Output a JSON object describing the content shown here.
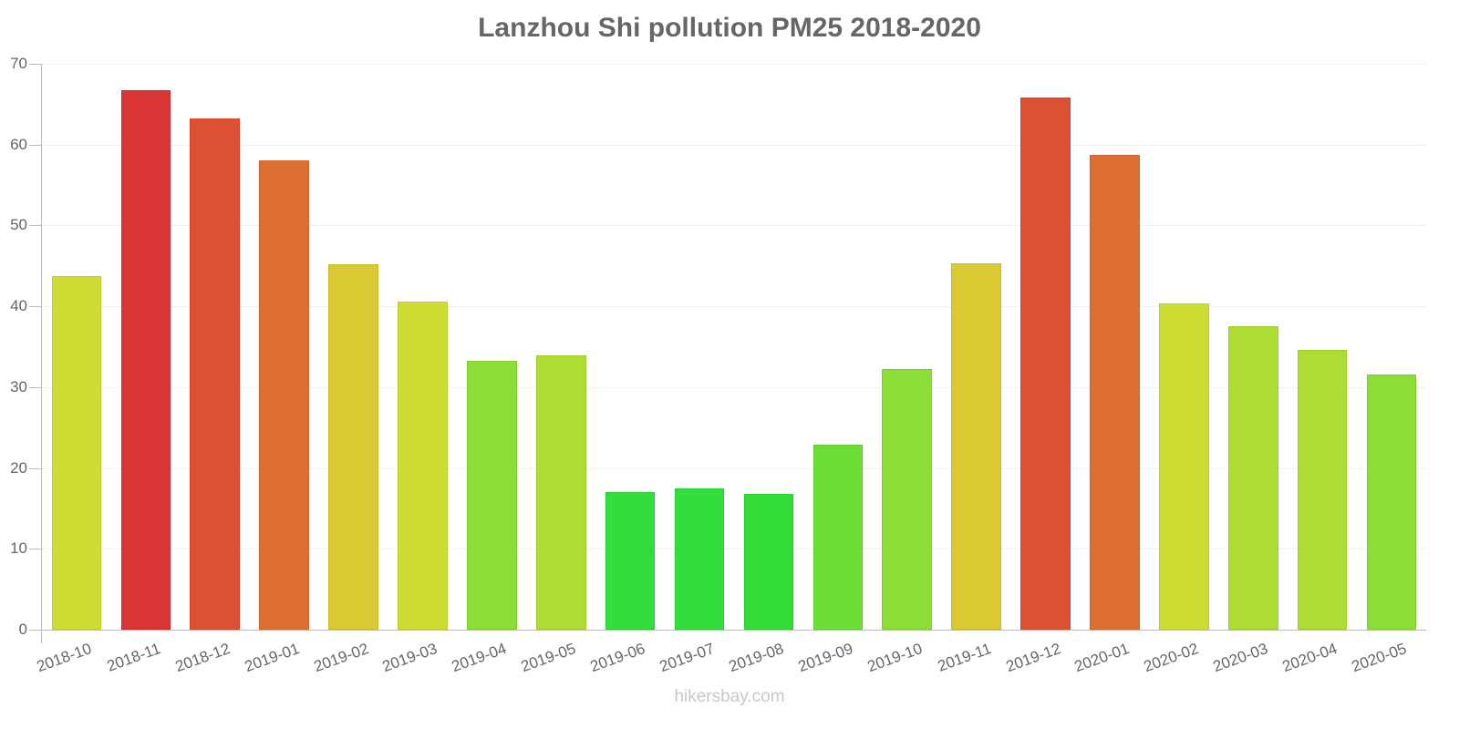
{
  "title": "Lanzhou Shi pollution PM25 2018-2020",
  "footer": "hikersbay.com",
  "chart_data": {
    "type": "bar",
    "title": "Lanzhou Shi pollution PM25 2018-2020",
    "xlabel": "",
    "ylabel": "",
    "ylim": [
      0,
      70
    ],
    "yticks": [
      0,
      10,
      20,
      30,
      40,
      50,
      60,
      70
    ],
    "grid": true,
    "legend": "none",
    "categories": [
      "2018-10",
      "2018-11",
      "2018-12",
      "2019-01",
      "2019-02",
      "2019-03",
      "2019-04",
      "2019-05",
      "2019-06",
      "2019-07",
      "2019-08",
      "2019-09",
      "2019-10",
      "2019-11",
      "2019-12",
      "2020-01",
      "2020-02",
      "2020-03",
      "2020-04",
      "2020-05"
    ],
    "values": [
      43.7,
      66.7,
      63.2,
      58.1,
      45.2,
      40.6,
      33.3,
      33.9,
      17.0,
      17.5,
      16.8,
      22.9,
      32.2,
      45.3,
      65.8,
      58.7,
      40.3,
      37.5,
      34.6,
      31.6
    ],
    "colors": [
      "#cedd33",
      "#d93535",
      "#dc5034",
      "#dd6f33",
      "#dac933",
      "#cedd33",
      "#8cdd36",
      "#addd33",
      "#33dd3b",
      "#33dd3b",
      "#33dd36",
      "#6ddd38",
      "#8cdd36",
      "#dac933",
      "#dc5034",
      "#dd6f33",
      "#cedd33",
      "#addd33",
      "#addd33",
      "#8cdd36"
    ]
  }
}
